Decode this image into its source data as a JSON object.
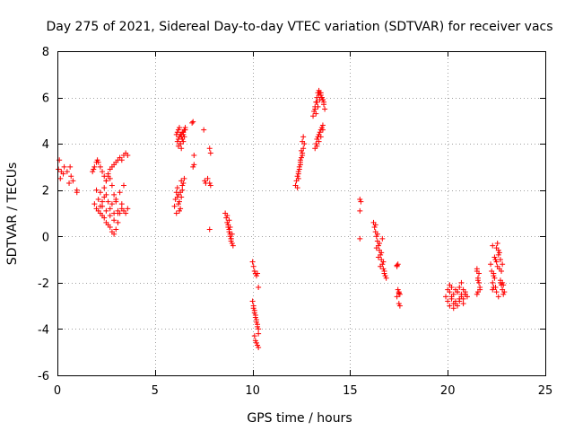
{
  "chart_data": {
    "type": "scatter",
    "title": "Day 275 of 2021, Sidereal Day-to-day VTEC variation (SDTVAR) for receiver vacs",
    "xlabel": "GPS time / hours",
    "ylabel": "SDTVAR / TECUs",
    "xlim": [
      0,
      25
    ],
    "ylim": [
      -6,
      8
    ],
    "xticks": [
      0,
      5,
      10,
      15,
      20,
      25
    ],
    "yticks": [
      -6,
      -4,
      -2,
      0,
      2,
      4,
      6,
      8
    ],
    "grid": true,
    "marker": "+",
    "color": "#ff0000",
    "series": [
      {
        "name": "SDTVAR",
        "x": [
          0.05,
          0.1,
          0.15,
          0.2,
          0.3,
          0.35,
          0.5,
          0.6,
          0.65,
          0.7,
          0.8,
          1.0,
          1.0,
          1.8,
          1.85,
          1.9,
          2.0,
          2.05,
          2.1,
          2.2,
          2.3,
          2.4,
          2.5,
          2.6,
          2.7,
          2.8,
          2.9,
          3.0,
          3.1,
          3.2,
          3.3,
          3.4,
          3.5,
          3.6,
          1.9,
          2.0,
          2.1,
          2.2,
          2.3,
          2.4,
          2.5,
          2.6,
          2.7,
          2.8,
          2.9,
          3.0,
          3.1,
          3.2,
          3.3,
          3.4,
          3.5,
          3.6,
          2.0,
          2.2,
          2.4,
          2.6,
          2.8,
          3.0,
          3.2,
          3.4,
          2.1,
          2.3,
          2.5,
          2.7,
          2.9,
          3.1,
          3.3,
          2.4,
          2.5,
          2.6,
          2.7,
          2.8,
          2.9,
          3.0,
          2.2,
          2.3,
          2.5,
          2.7,
          2.9,
          3.1,
          6.1,
          6.15,
          6.2,
          6.25,
          6.3,
          6.35,
          6.4,
          6.45,
          6.5,
          6.55,
          6.15,
          6.2,
          6.25,
          6.3,
          6.35,
          6.4,
          6.45,
          6.5,
          6.55,
          6.2,
          6.3,
          6.35,
          6.4,
          6.45,
          6.0,
          6.05,
          6.1,
          6.15,
          6.2,
          6.25,
          6.3,
          6.35,
          6.4,
          6.45,
          6.5,
          6.1,
          6.2,
          6.3,
          6.4,
          6.15,
          6.25,
          6.35,
          6.9,
          6.95,
          7.0,
          6.95,
          7.0,
          7.5,
          7.55,
          7.6,
          7.7,
          7.8,
          7.85,
          7.8,
          7.85,
          7.8,
          8.6,
          8.65,
          8.7,
          8.75,
          8.8,
          8.85,
          8.9,
          8.95,
          9.0,
          8.7,
          8.75,
          8.8,
          8.85,
          8.9,
          8.95,
          8.8,
          8.85,
          8.9,
          10.0,
          10.05,
          10.1,
          10.15,
          10.2,
          10.25,
          10.3,
          10.0,
          10.05,
          10.1,
          10.15,
          10.2,
          10.25,
          10.3,
          10.05,
          10.1,
          10.15,
          10.2,
          10.25,
          10.3,
          10.1,
          10.15,
          10.2,
          10.25,
          10.3,
          12.2,
          12.25,
          12.3,
          12.35,
          12.4,
          12.45,
          12.5,
          12.55,
          12.6,
          12.65,
          12.3,
          12.35,
          12.4,
          12.45,
          12.5,
          12.55,
          12.6,
          12.35,
          12.45,
          12.55,
          13.1,
          13.15,
          13.2,
          13.25,
          13.3,
          13.35,
          13.4,
          13.45,
          13.5,
          13.55,
          13.6,
          13.65,
          13.7,
          13.2,
          13.3,
          13.4,
          13.5,
          13.6,
          13.25,
          13.35,
          13.45,
          13.55,
          13.65,
          13.2,
          13.25,
          13.3,
          13.35,
          13.4,
          13.45,
          13.5,
          13.55,
          13.6,
          13.3,
          13.4,
          13.5,
          13.6,
          15.5,
          15.5,
          15.5,
          15.55,
          16.2,
          16.25,
          16.3,
          16.35,
          16.4,
          16.45,
          16.5,
          16.55,
          16.6,
          16.65,
          16.7,
          16.75,
          16.8,
          16.85,
          16.3,
          16.4,
          16.5,
          16.6,
          16.7,
          16.35,
          16.45,
          16.55,
          16.65,
          16.75,
          17.4,
          17.45,
          17.5,
          17.55,
          17.4,
          17.45,
          17.5,
          17.55,
          17.4,
          17.5,
          19.9,
          20.0,
          20.1,
          20.2,
          20.3,
          20.4,
          20.5,
          20.6,
          20.7,
          20.8,
          20.9,
          21.0,
          20.0,
          20.1,
          20.2,
          20.3,
          20.4,
          20.5,
          20.6,
          20.7,
          20.8,
          20.9,
          20.1,
          20.3,
          20.5,
          20.7,
          20.9,
          20.2,
          20.4,
          20.6,
          20.8,
          21.5,
          21.55,
          21.6,
          21.65,
          21.5,
          21.55,
          21.6,
          21.65,
          21.5,
          21.55,
          22.2,
          22.25,
          22.3,
          22.35,
          22.4,
          22.45,
          22.5,
          22.55,
          22.6,
          22.65,
          22.7,
          22.75,
          22.8,
          22.85,
          22.9,
          22.3,
          22.4,
          22.5,
          22.6,
          22.7,
          22.8,
          22.35,
          22.45,
          22.55,
          22.65,
          22.75,
          22.85,
          22.3,
          22.35,
          22.5,
          22.6,
          22.7,
          22.8
        ],
        "y": [
          2.9,
          3.3,
          2.5,
          2.8,
          2.7,
          3.0,
          2.8,
          2.3,
          3.0,
          2.6,
          2.4,
          2.0,
          1.9,
          2.8,
          2.9,
          3.0,
          3.2,
          3.3,
          3.2,
          3.0,
          2.8,
          2.6,
          2.4,
          2.7,
          2.9,
          3.0,
          3.1,
          3.2,
          3.3,
          3.4,
          3.3,
          3.5,
          3.6,
          3.5,
          1.4,
          1.2,
          1.1,
          1.0,
          0.9,
          0.8,
          0.6,
          0.5,
          0.4,
          0.2,
          0.1,
          0.3,
          0.6,
          1.0,
          1.2,
          1.1,
          1.0,
          1.2,
          2.0,
          1.9,
          1.7,
          1.5,
          1.4,
          1.6,
          1.9,
          2.2,
          1.6,
          1.3,
          1.1,
          0.9,
          0.7,
          1.0,
          1.4,
          2.1,
          2.4,
          2.6,
          2.5,
          2.2,
          1.8,
          1.5,
          1.3,
          1.5,
          1.8,
          1.2,
          1.0,
          1.1,
          4.4,
          4.5,
          4.6,
          4.7,
          4.4,
          4.3,
          4.2,
          4.5,
          4.6,
          4.7,
          4.1,
          4.2,
          4.3,
          4.0,
          4.4,
          4.5,
          4.1,
          4.3,
          4.6,
          3.9,
          4.0,
          3.8,
          4.2,
          4.4,
          1.3,
          1.6,
          1.9,
          2.1,
          1.8,
          1.5,
          1.2,
          1.7,
          2.0,
          2.3,
          2.5,
          1.0,
          1.4,
          1.9,
          2.2,
          1.7,
          1.1,
          2.4,
          4.9,
          4.95,
          3.5,
          3.0,
          3.1,
          4.6,
          2.4,
          2.3,
          2.5,
          3.8,
          3.6,
          2.3,
          2.2,
          0.3,
          1.0,
          0.8,
          0.6,
          0.4,
          0.2,
          0.0,
          -0.1,
          -0.3,
          -0.4,
          0.9,
          0.5,
          0.3,
          0.1,
          -0.2,
          0.1,
          0.7,
          0.4,
          -0.1,
          -1.1,
          -1.3,
          -1.5,
          -1.6,
          -1.7,
          -1.6,
          -2.2,
          -2.8,
          -3.0,
          -3.2,
          -3.4,
          -3.6,
          -3.8,
          -4.0,
          -3.1,
          -3.3,
          -3.5,
          -3.7,
          -3.9,
          -4.2,
          -4.3,
          -4.5,
          -4.6,
          -4.7,
          -4.8,
          2.2,
          2.4,
          2.6,
          2.8,
          3.0,
          3.2,
          3.4,
          3.6,
          3.8,
          4.0,
          2.1,
          2.5,
          2.9,
          3.3,
          3.7,
          4.1,
          4.3,
          2.7,
          3.1,
          3.5,
          5.2,
          5.4,
          5.6,
          5.8,
          6.0,
          6.2,
          6.3,
          6.2,
          6.1,
          6.0,
          5.9,
          5.7,
          5.5,
          5.5,
          5.8,
          6.1,
          6.2,
          5.9,
          5.3,
          5.6,
          5.9,
          6.0,
          5.8,
          3.8,
          4.0,
          4.2,
          4.3,
          4.4,
          4.5,
          4.6,
          4.7,
          4.8,
          3.9,
          4.1,
          4.3,
          4.6,
          1.6,
          1.1,
          -0.1,
          1.5,
          0.6,
          0.4,
          0.2,
          0.0,
          -0.2,
          -0.4,
          -0.6,
          -0.8,
          -1.0,
          -1.2,
          -1.4,
          -1.5,
          -1.7,
          -1.8,
          0.5,
          0.1,
          -0.3,
          -0.7,
          -1.1,
          -0.5,
          -0.9,
          -1.3,
          -0.1,
          -1.6,
          -1.3,
          -1.2,
          -2.4,
          -2.5,
          -2.6,
          -2.3,
          -2.9,
          -3.0,
          -1.25,
          -2.45,
          -2.6,
          -2.8,
          -2.4,
          -2.2,
          -2.5,
          -2.9,
          -3.0,
          -2.7,
          -2.5,
          -2.3,
          -2.4,
          -2.6,
          -2.3,
          -2.1,
          -2.7,
          -3.1,
          -2.8,
          -2.4,
          -2.2,
          -2.6,
          -2.9,
          -2.5,
          -3.0,
          -2.9,
          -2.4,
          -2.0,
          -2.5,
          -2.6,
          -2.3,
          -2.8,
          -2.7,
          -1.5,
          -1.8,
          -2.0,
          -2.3,
          -2.5,
          -1.9,
          -1.6,
          -2.2,
          -1.4,
          -2.4,
          -1.2,
          -1.5,
          -2.0,
          -2.2,
          -1.8,
          -1.0,
          -0.5,
          -0.3,
          -0.8,
          -1.4,
          -1.9,
          -2.1,
          -2.3,
          -2.5,
          -2.4,
          -0.4,
          -0.9,
          -1.1,
          -2.6,
          -2.0,
          -1.2,
          -1.7,
          -2.2,
          -1.3,
          -0.7,
          -1.5,
          -2.1,
          -2.3,
          -1.6,
          -2.4,
          -0.6,
          -1.0,
          -2.0
        ]
      }
    ]
  }
}
